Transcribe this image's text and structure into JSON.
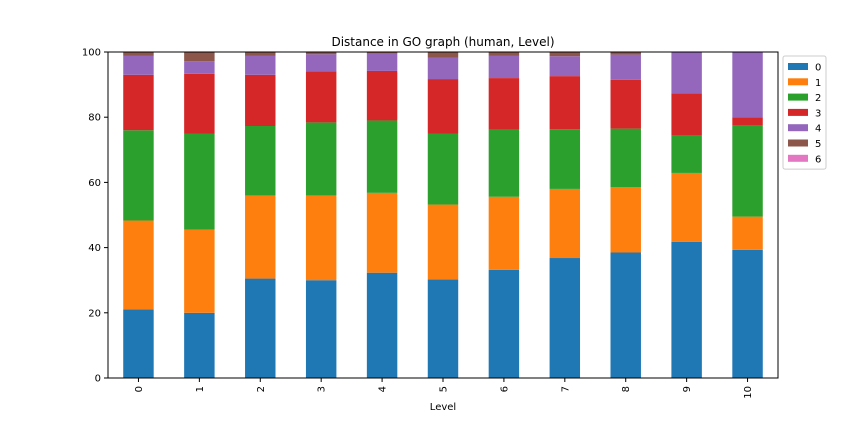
{
  "chart_data": {
    "type": "bar",
    "stacked": true,
    "title": "Distance in GO graph (human, Level)",
    "xlabel": "Level",
    "ylabel": "",
    "ylim": [
      0,
      100
    ],
    "yticks": [
      0,
      20,
      40,
      60,
      80,
      100
    ],
    "categories": [
      "0",
      "1",
      "2",
      "3",
      "4",
      "5",
      "6",
      "7",
      "8",
      "9",
      "10"
    ],
    "legend_position": "upper right, outside plot",
    "series": [
      {
        "name": "0",
        "color": "#1f77b4",
        "values": [
          21.0,
          20.0,
          30.5,
          30.0,
          32.3,
          30.2,
          33.2,
          36.8,
          38.5,
          41.8,
          39.3
        ]
      },
      {
        "name": "1",
        "color": "#ff7f0e",
        "values": [
          27.3,
          25.5,
          25.5,
          26.0,
          24.5,
          23.0,
          22.4,
          21.2,
          20.0,
          21.1,
          10.2
        ]
      },
      {
        "name": "2",
        "color": "#2ca02c",
        "values": [
          27.7,
          29.5,
          21.3,
          22.4,
          22.2,
          21.8,
          20.6,
          18.3,
          18.0,
          11.4,
          27.9
        ]
      },
      {
        "name": "3",
        "color": "#d62728",
        "values": [
          17.0,
          18.3,
          15.7,
          15.7,
          15.2,
          16.7,
          15.8,
          16.3,
          15.0,
          13.0,
          2.6
        ]
      },
      {
        "name": "4",
        "color": "#9467bd",
        "values": [
          5.8,
          3.9,
          5.8,
          5.2,
          5.3,
          6.6,
          6.8,
          6.1,
          7.7,
          12.7,
          20.0
        ]
      },
      {
        "name": "5",
        "color": "#8c564b",
        "values": [
          1.2,
          2.8,
          1.2,
          0.7,
          0.5,
          1.7,
          1.2,
          1.3,
          0.8,
          0.0,
          0.0
        ]
      },
      {
        "name": "6",
        "color": "#e377c2",
        "values": [
          0.0,
          0.0,
          0.0,
          0.0,
          0.0,
          0.0,
          0.0,
          0.0,
          0.0,
          0.0,
          0.0
        ]
      }
    ]
  }
}
